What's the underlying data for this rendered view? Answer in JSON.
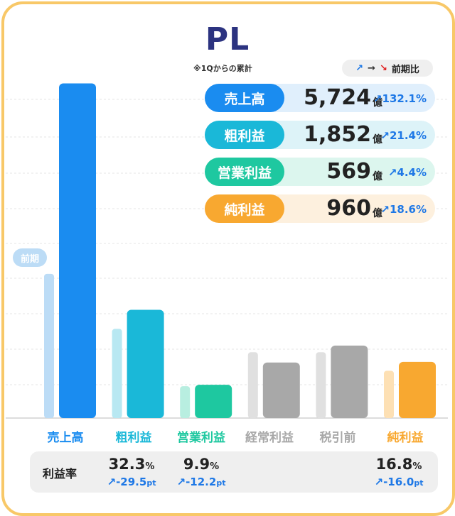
{
  "title": "PL",
  "subtitle": "※1Qからの累計",
  "legend": {
    "up": "↗",
    "right": "→",
    "down": "↘",
    "label": "前期比"
  },
  "prev_badge": "前期",
  "stats": [
    {
      "label": "売上高",
      "value": "5,724",
      "unit": "億",
      "change": "↗132.1%",
      "color": "#1a8cf0",
      "bg": "#e0effc"
    },
    {
      "label": "粗利益",
      "value": "1,852",
      "unit": "億",
      "change": "↗21.4%",
      "color": "#1ab8d8",
      "bg": "#ddf3f8"
    },
    {
      "label": "営業利益",
      "value": "569",
      "unit": "億",
      "change": "↗4.4%",
      "color": "#1ec8a0",
      "bg": "#dcf6ee"
    },
    {
      "label": "純利益",
      "value": "960",
      "unit": "億",
      "change": "↗18.6%",
      "color": "#f8a830",
      "bg": "#fdf0de"
    }
  ],
  "ratio": {
    "title": "利益率",
    "items": [
      {
        "value": "32.3",
        "unit": "%",
        "change": "↗-29.5",
        "change_unit": "pt"
      },
      {
        "value": "9.9",
        "unit": "%",
        "change": "↗-12.2",
        "change_unit": "pt"
      },
      {
        "value": "16.8",
        "unit": "%",
        "change": "↗-16.0",
        "change_unit": "pt"
      }
    ]
  },
  "chart_data": {
    "type": "bar",
    "title": "PL",
    "categories": [
      "売上高",
      "粗利益",
      "営業利益",
      "経常利益",
      "税引前",
      "純利益"
    ],
    "category_colors": [
      "#1a8cf0",
      "#1ab8d8",
      "#1ec8a0",
      "#a8a8a8",
      "#a8a8a8",
      "#f8a830"
    ],
    "prev_colors": [
      "#bcdcf6",
      "#b8e8f2",
      "#b8eee0",
      "#e0e0e0",
      "#e0e0e0",
      "#fde0b4"
    ],
    "series": [
      {
        "name": "前期",
        "values": [
          2466,
          1526,
          545,
          1126,
          1126,
          809
        ]
      },
      {
        "name": "",
        "values": [
          5724,
          1852,
          569,
          950,
          1240,
          960
        ]
      }
    ],
    "ylim": [
      0,
      5900
    ],
    "grid": true
  }
}
